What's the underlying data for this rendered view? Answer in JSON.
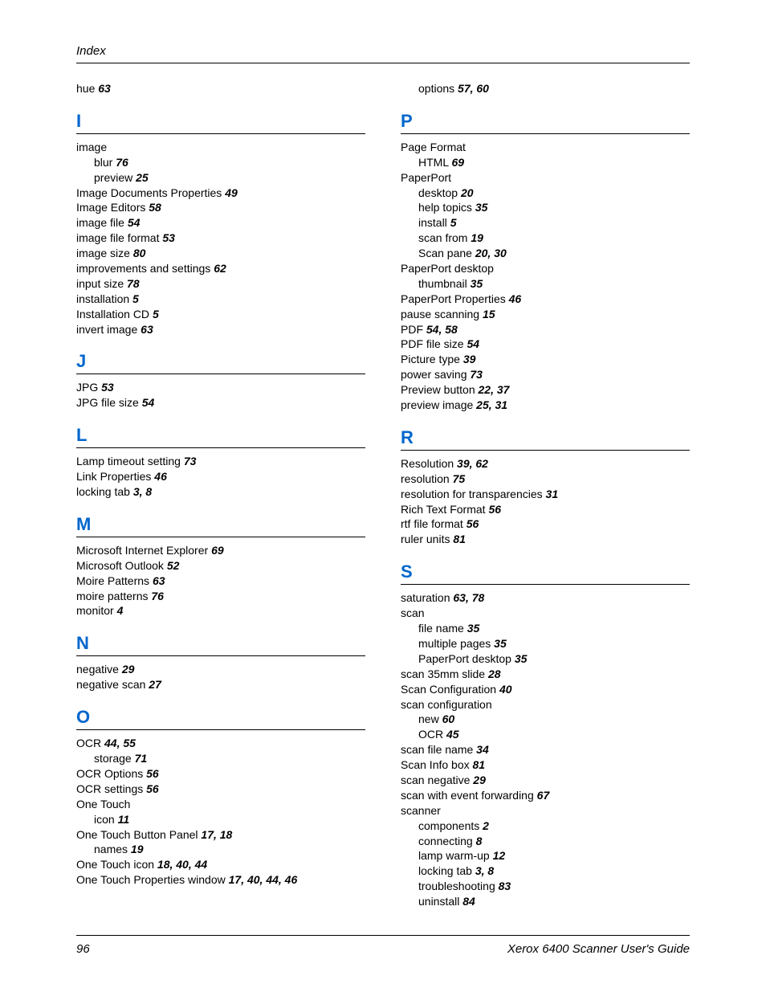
{
  "header": {
    "title": "Index"
  },
  "footer": {
    "page": "96",
    "book": "Xerox 6400 Scanner User's Guide"
  },
  "left": {
    "pre": [
      {
        "text": "hue",
        "pages": "63",
        "indent": 0
      }
    ],
    "sections": [
      {
        "letter": "I",
        "items": [
          {
            "text": "image",
            "pages": "",
            "indent": 0
          },
          {
            "text": "blur",
            "pages": "76",
            "indent": 1
          },
          {
            "text": "preview",
            "pages": "25",
            "indent": 1
          },
          {
            "text": "Image Documents Properties",
            "pages": "49",
            "indent": 0
          },
          {
            "text": "Image Editors",
            "pages": "58",
            "indent": 0
          },
          {
            "text": "image file",
            "pages": "54",
            "indent": 0
          },
          {
            "text": "image file format",
            "pages": "53",
            "indent": 0
          },
          {
            "text": "image size",
            "pages": "80",
            "indent": 0
          },
          {
            "text": "improvements and settings",
            "pages": "62",
            "indent": 0
          },
          {
            "text": "input size",
            "pages": "78",
            "indent": 0
          },
          {
            "text": "installation",
            "pages": "5",
            "indent": 0
          },
          {
            "text": "Installation CD",
            "pages": "5",
            "indent": 0
          },
          {
            "text": "invert image",
            "pages": "63",
            "indent": 0
          }
        ]
      },
      {
        "letter": "J",
        "items": [
          {
            "text": "JPG",
            "pages": "53",
            "indent": 0
          },
          {
            "text": "JPG file size",
            "pages": "54",
            "indent": 0
          }
        ]
      },
      {
        "letter": "L",
        "items": [
          {
            "text": "Lamp timeout setting",
            "pages": "73",
            "indent": 0
          },
          {
            "text": "Link Properties",
            "pages": "46",
            "indent": 0
          },
          {
            "text": "locking tab",
            "pages": "3, 8",
            "indent": 0
          }
        ]
      },
      {
        "letter": "M",
        "items": [
          {
            "text": "Microsoft Internet Explorer",
            "pages": "69",
            "indent": 0
          },
          {
            "text": "Microsoft Outlook",
            "pages": "52",
            "indent": 0
          },
          {
            "text": "Moire Patterns",
            "pages": "63",
            "indent": 0
          },
          {
            "text": "moire patterns",
            "pages": "76",
            "indent": 0
          },
          {
            "text": "monitor",
            "pages": "4",
            "indent": 0
          }
        ]
      },
      {
        "letter": "N",
        "items": [
          {
            "text": "negative",
            "pages": "29",
            "indent": 0
          },
          {
            "text": "negative scan",
            "pages": "27",
            "indent": 0
          }
        ]
      },
      {
        "letter": "O",
        "items": [
          {
            "text": "OCR",
            "pages": "44, 55",
            "indent": 0
          },
          {
            "text": "storage",
            "pages": "71",
            "indent": 1
          },
          {
            "text": "OCR Options",
            "pages": "56",
            "indent": 0
          },
          {
            "text": "OCR settings",
            "pages": "56",
            "indent": 0
          },
          {
            "text": "One Touch",
            "pages": "",
            "indent": 0
          },
          {
            "text": "icon",
            "pages": "11",
            "indent": 1
          },
          {
            "text": "One Touch Button Panel",
            "pages": "17, 18",
            "indent": 0
          },
          {
            "text": "names",
            "pages": "19",
            "indent": 1
          },
          {
            "text": "One Touch icon",
            "pages": "18, 40, 44",
            "indent": 0
          },
          {
            "text": "One Touch Properties window",
            "pages": "17, 40, 44, 46",
            "indent": 0
          }
        ]
      }
    ]
  },
  "right": {
    "pre": [
      {
        "text": "options",
        "pages": "57, 60",
        "indent": 1
      }
    ],
    "sections": [
      {
        "letter": "P",
        "items": [
          {
            "text": "Page Format",
            "pages": "",
            "indent": 0
          },
          {
            "text": "HTML",
            "pages": "69",
            "indent": 1
          },
          {
            "text": "PaperPort",
            "pages": "",
            "indent": 0
          },
          {
            "text": "desktop",
            "pages": "20",
            "indent": 1
          },
          {
            "text": "help topics",
            "pages": "35",
            "indent": 1
          },
          {
            "text": "install",
            "pages": "5",
            "indent": 1
          },
          {
            "text": "scan from",
            "pages": "19",
            "indent": 1
          },
          {
            "text": "Scan pane",
            "pages": "20, 30",
            "indent": 1
          },
          {
            "text": "PaperPort desktop",
            "pages": "",
            "indent": 0
          },
          {
            "text": "thumbnail",
            "pages": "35",
            "indent": 1
          },
          {
            "text": "PaperPort Properties",
            "pages": "46",
            "indent": 0
          },
          {
            "text": "pause scanning",
            "pages": "15",
            "indent": 0
          },
          {
            "text": "PDF",
            "pages": "54, 58",
            "indent": 0
          },
          {
            "text": "PDF file size",
            "pages": "54",
            "indent": 0
          },
          {
            "text": "Picture type",
            "pages": "39",
            "indent": 0
          },
          {
            "text": "power saving",
            "pages": "73",
            "indent": 0
          },
          {
            "text": "Preview button",
            "pages": "22, 37",
            "indent": 0
          },
          {
            "text": "preview image",
            "pages": "25, 31",
            "indent": 0
          }
        ]
      },
      {
        "letter": "R",
        "items": [
          {
            "text": "Resolution",
            "pages": "39, 62",
            "indent": 0
          },
          {
            "text": "resolution",
            "pages": "75",
            "indent": 0
          },
          {
            "text": "resolution for transparencies",
            "pages": "31",
            "indent": 0
          },
          {
            "text": "Rich Text Format",
            "pages": "56",
            "indent": 0
          },
          {
            "text": "rtf file format",
            "pages": "56",
            "indent": 0
          },
          {
            "text": "ruler units",
            "pages": "81",
            "indent": 0
          }
        ]
      },
      {
        "letter": "S",
        "items": [
          {
            "text": "saturation",
            "pages": "63, 78",
            "indent": 0
          },
          {
            "text": "scan",
            "pages": "",
            "indent": 0
          },
          {
            "text": "file name",
            "pages": "35",
            "indent": 1
          },
          {
            "text": "multiple pages",
            "pages": "35",
            "indent": 1
          },
          {
            "text": "PaperPort desktop",
            "pages": "35",
            "indent": 1
          },
          {
            "text": "scan 35mm slide",
            "pages": "28",
            "indent": 0
          },
          {
            "text": "Scan Configuration",
            "pages": "40",
            "indent": 0
          },
          {
            "text": "scan configuration",
            "pages": "",
            "indent": 0
          },
          {
            "text": "new",
            "pages": "60",
            "indent": 1
          },
          {
            "text": "OCR",
            "pages": "45",
            "indent": 1
          },
          {
            "text": "scan file name",
            "pages": "34",
            "indent": 0
          },
          {
            "text": "Scan Info box",
            "pages": "81",
            "indent": 0
          },
          {
            "text": "scan negative",
            "pages": "29",
            "indent": 0
          },
          {
            "text": "scan with event forwarding",
            "pages": "67",
            "indent": 0
          },
          {
            "text": "scanner",
            "pages": "",
            "indent": 0
          },
          {
            "text": "components",
            "pages": "2",
            "indent": 1
          },
          {
            "text": "connecting",
            "pages": "8",
            "indent": 1
          },
          {
            "text": "lamp warm-up",
            "pages": "12",
            "indent": 1
          },
          {
            "text": "locking tab",
            "pages": "3, 8",
            "indent": 1
          },
          {
            "text": "troubleshooting",
            "pages": "83",
            "indent": 1
          },
          {
            "text": "uninstall",
            "pages": "84",
            "indent": 1
          }
        ]
      }
    ]
  }
}
